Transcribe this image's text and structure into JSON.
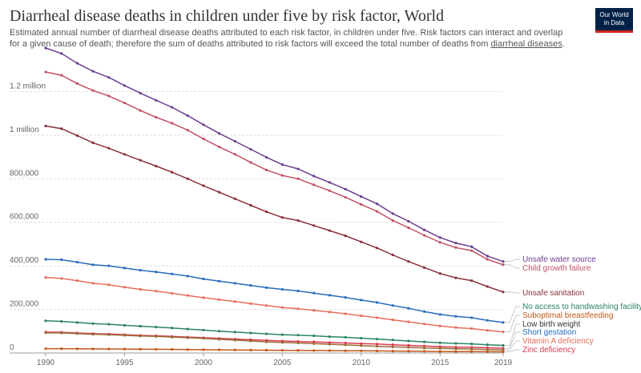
{
  "header": {
    "title": "Diarrheal disease deaths in children under five by risk factor, World",
    "subtitle": "Estimated annual number of diarrheal disease deaths attributed to each risk factor, in children under five. Risk factors can interact and overlap for a given cause of death; therefore the sum of deaths attributed to risk factors will exceed the total number of deaths from ",
    "subtitle_link": "diarrheal diseases",
    "subtitle_end": ".",
    "logo_line1": "Our World",
    "logo_line2": "in Data"
  },
  "chart_data": {
    "type": "line",
    "title": "Diarrheal disease deaths in children under five by risk factor, World",
    "xlabel": "",
    "ylabel": "",
    "xlim": [
      1990,
      2019
    ],
    "ylim": [
      0,
      1400000
    ],
    "x": [
      1990,
      1991,
      1992,
      1993,
      1994,
      1995,
      1996,
      1997,
      1998,
      1999,
      2000,
      2001,
      2002,
      2003,
      2004,
      2005,
      2006,
      2007,
      2008,
      2009,
      2010,
      2011,
      2012,
      2013,
      2014,
      2015,
      2016,
      2017,
      2018,
      2019
    ],
    "x_ticks": [
      1990,
      1995,
      2000,
      2005,
      2010,
      2015,
      2019
    ],
    "x_tick_labels": [
      "1990",
      "1995",
      "2000",
      "2005",
      "2010",
      "2015",
      "2019"
    ],
    "y_ticks": [
      0,
      200000,
      400000,
      600000,
      800000,
      1000000,
      1200000
    ],
    "y_tick_labels": [
      "0",
      "200,000",
      "400,000",
      "600,000",
      "800,000",
      "1 million",
      "1.2 million"
    ],
    "series": [
      {
        "name": "Unsafe water source",
        "color": "#6d3e91",
        "values": [
          1400000,
          1375000,
          1330000,
          1293000,
          1265000,
          1228000,
          1193000,
          1160000,
          1128000,
          1090000,
          1048000,
          1008000,
          972000,
          935000,
          898000,
          865000,
          845000,
          812000,
          783000,
          752000,
          718000,
          685000,
          640000,
          605000,
          565000,
          530000,
          505000,
          488000,
          445000,
          420000
        ]
      },
      {
        "name": "Child growth failure",
        "color": "#c15065",
        "values": [
          1290000,
          1275000,
          1237000,
          1205000,
          1180000,
          1148000,
          1113000,
          1082000,
          1055000,
          1023000,
          983000,
          946000,
          912000,
          875000,
          840000,
          815000,
          800000,
          772000,
          745000,
          715000,
          682000,
          650000,
          608000,
          575000,
          540000,
          508000,
          484000,
          470000,
          430000,
          405000
        ]
      },
      {
        "name": "Unsafe sanitation",
        "color": "#883039",
        "values": [
          1042000,
          1030000,
          998000,
          965000,
          940000,
          912000,
          885000,
          858000,
          830000,
          800000,
          768000,
          738000,
          708000,
          678000,
          648000,
          622000,
          608000,
          585000,
          562000,
          538000,
          510000,
          482000,
          450000,
          420000,
          392000,
          365000,
          345000,
          332000,
          305000,
          280000
        ]
      },
      {
        "name": "No access to handwashing facility",
        "color": "#286bbb",
        "values": [
          430000,
          428000,
          417000,
          405000,
          400000,
          390000,
          380000,
          372000,
          363000,
          353000,
          340000,
          330000,
          320000,
          310000,
          300000,
          292000,
          285000,
          275000,
          265000,
          255000,
          243000,
          232000,
          218000,
          205000,
          190000,
          177000,
          168000,
          162000,
          150000,
          140000
        ]
      },
      {
        "name": "Suboptimal breastfeeding",
        "color": "#e56e5a",
        "values": [
          347000,
          342000,
          332000,
          320000,
          313000,
          302000,
          292000,
          284000,
          274000,
          264000,
          254000,
          245000,
          236000,
          227000,
          218000,
          209000,
          203000,
          196000,
          188000,
          180000,
          171000,
          162000,
          152000,
          143000,
          133000,
          124000,
          117000,
          112000,
          104000,
          97000
        ]
      },
      {
        "name": "Low birth weight",
        "color": "#2c8465",
        "values": [
          148000,
          145000,
          140000,
          135000,
          132000,
          127000,
          123000,
          119000,
          115000,
          110000,
          105000,
          100000,
          96000,
          92000,
          88000,
          84000,
          82000,
          79000,
          75000,
          72000,
          68000,
          64000,
          60000,
          55000,
          51000,
          47000,
          44000,
          42000,
          38000,
          35000
        ]
      },
      {
        "name": "Short gestation",
        "color": "#d73c50",
        "values": [
          96000,
          95000,
          92000,
          89000,
          87000,
          84000,
          81000,
          79000,
          76000,
          73000,
          70000,
          67000,
          64000,
          61000,
          58000,
          55000,
          53000,
          51000,
          48000,
          46000,
          43000,
          41000,
          38000,
          35000,
          32000,
          29000,
          27000,
          26000,
          24000,
          22000
        ]
      },
      {
        "name": "Vitamin A deficiency",
        "color": "#996d39",
        "values": [
          93000,
          92000,
          89000,
          86000,
          84000,
          81000,
          78000,
          76000,
          73000,
          70000,
          67000,
          63000,
          59000,
          55000,
          51000,
          48000,
          46000,
          43000,
          40000,
          37000,
          34000,
          31000,
          28000,
          26000,
          23000,
          21000,
          19000,
          18000,
          16000,
          14000
        ]
      },
      {
        "name": "Zinc deficiency",
        "color": "#c05917",
        "values": [
          20000,
          19800,
          19300,
          18800,
          18400,
          17900,
          17400,
          16900,
          16400,
          15800,
          15200,
          14600,
          14000,
          13400,
          12800,
          12200,
          11900,
          11400,
          10900,
          10400,
          9900,
          9400,
          8800,
          8200,
          7600,
          7000,
          6600,
          6300,
          5800,
          5400
        ]
      }
    ],
    "legend_labels": [
      {
        "name": "Unsafe water source",
        "color": "#6d3e91"
      },
      {
        "name": "Child growth failure",
        "color": "#c15065"
      },
      {
        "name": "Unsafe sanitation",
        "color": "#883039"
      },
      {
        "name": "No access to handwashing facility",
        "color": "#2c8465"
      },
      {
        "name": "Suboptimal breastfeeding",
        "color": "#c05917"
      },
      {
        "name": "Low birth weight",
        "color": "#333333"
      },
      {
        "name": "Short gestation",
        "color": "#286bbb"
      },
      {
        "name": "Vitamin A deficiency",
        "color": "#e56e5a"
      },
      {
        "name": "Zinc deficiency",
        "color": "#d73c50"
      }
    ]
  }
}
